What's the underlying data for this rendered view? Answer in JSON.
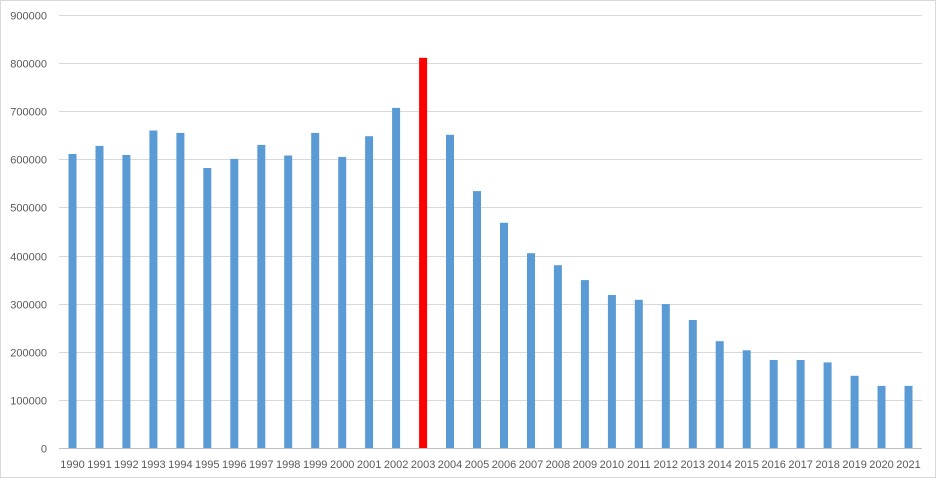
{
  "chart_data": {
    "type": "bar",
    "categories": [
      "1990",
      "1991",
      "1992",
      "1993",
      "1994",
      "1995",
      "1996",
      "1997",
      "1998",
      "1999",
      "2000",
      "2001",
      "2002",
      "2003",
      "2004",
      "2005",
      "2006",
      "2007",
      "2008",
      "2009",
      "2010",
      "2011",
      "2012",
      "2013",
      "2014",
      "2015",
      "2016",
      "2017",
      "2018",
      "2019",
      "2020",
      "2021"
    ],
    "values": [
      611000,
      628000,
      609000,
      660000,
      655000,
      582000,
      601000,
      630000,
      608000,
      655000,
      605000,
      648000,
      707000,
      811000,
      651000,
      534000,
      468000,
      405000,
      380000,
      349000,
      318000,
      308000,
      299000,
      266000,
      222000,
      203000,
      183000,
      183000,
      178000,
      150000,
      129000,
      129000
    ],
    "highlight_category": "2003",
    "colors": {
      "bar": "#5b9bd5",
      "highlight": "#ff0000"
    },
    "ylim": [
      0,
      900000
    ],
    "yticks": [
      0,
      100000,
      200000,
      300000,
      400000,
      500000,
      600000,
      700000,
      800000,
      900000
    ],
    "ytick_labels": [
      "0",
      "100000",
      "200000",
      "300000",
      "400000",
      "500000",
      "600000",
      "700000",
      "800000",
      "900000"
    ],
    "grid": true,
    "legend": "none"
  }
}
